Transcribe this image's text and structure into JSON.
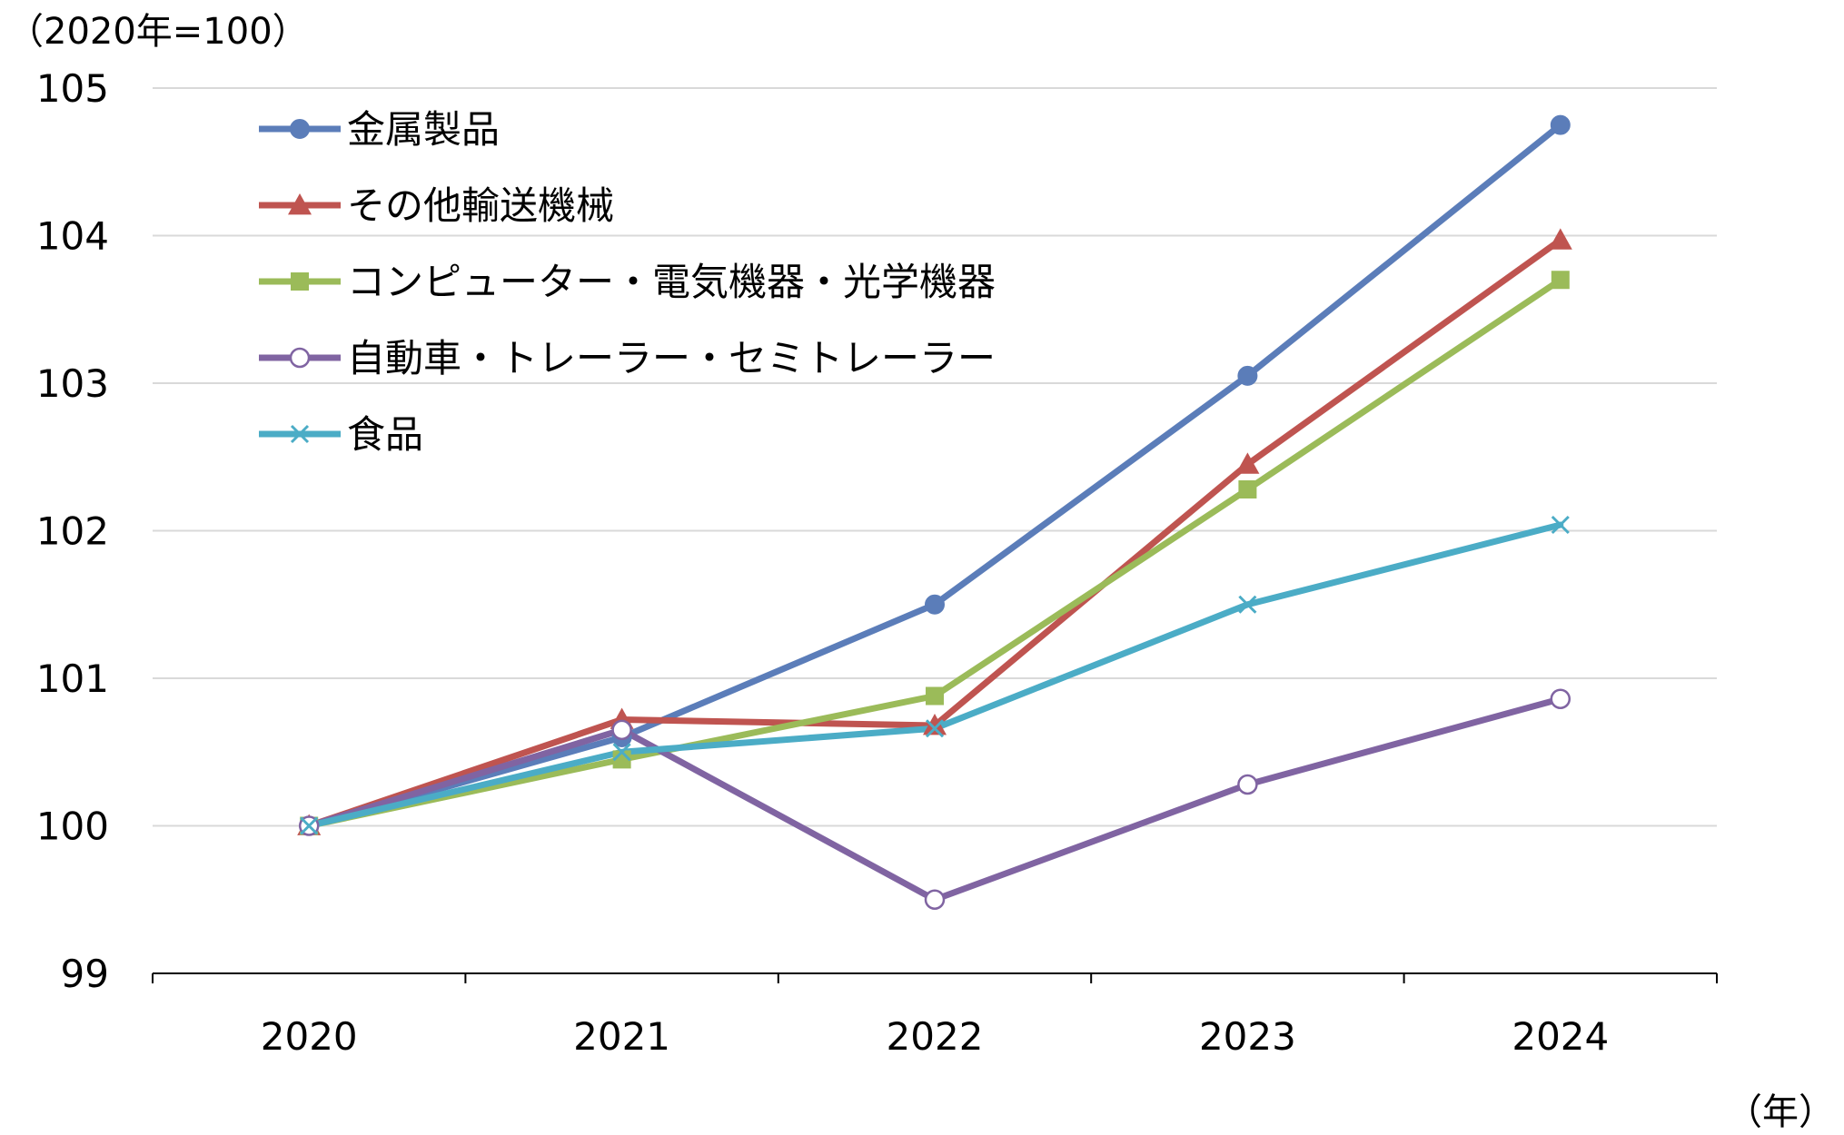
{
  "chart_data": {
    "type": "line",
    "y_unit_label": "（2020年=100）",
    "x_unit_label": "（年）",
    "categories": [
      "2020",
      "2021",
      "2022",
      "2023",
      "2024"
    ],
    "ylim": [
      99,
      105
    ],
    "yticks": [
      "99",
      "100",
      "101",
      "102",
      "103",
      "104",
      "105"
    ],
    "grid": true,
    "legend_position": "top-left",
    "series": [
      {
        "name": "金属製品",
        "color": "#5B7DB9",
        "marker": "filled-circle",
        "values": [
          100,
          100.6,
          101.5,
          103.05,
          104.75
        ]
      },
      {
        "name": "その他輸送機械",
        "color": "#BF5450",
        "marker": "filled-triangle",
        "values": [
          100,
          100.72,
          100.68,
          102.45,
          103.97
        ]
      },
      {
        "name": "コンピューター・電気機器・光学機器",
        "color": "#9BBB59",
        "marker": "filled-square",
        "values": [
          100,
          100.45,
          100.88,
          102.28,
          103.7
        ]
      },
      {
        "name": "自動車・トレーラー・セミトレーラー",
        "color": "#8064A2",
        "marker": "open-circle",
        "values": [
          100,
          100.65,
          99.5,
          100.28,
          100.86
        ]
      },
      {
        "name": "食品",
        "color": "#4BACC6",
        "marker": "x",
        "values": [
          100,
          100.5,
          100.66,
          101.5,
          102.04
        ]
      }
    ]
  }
}
